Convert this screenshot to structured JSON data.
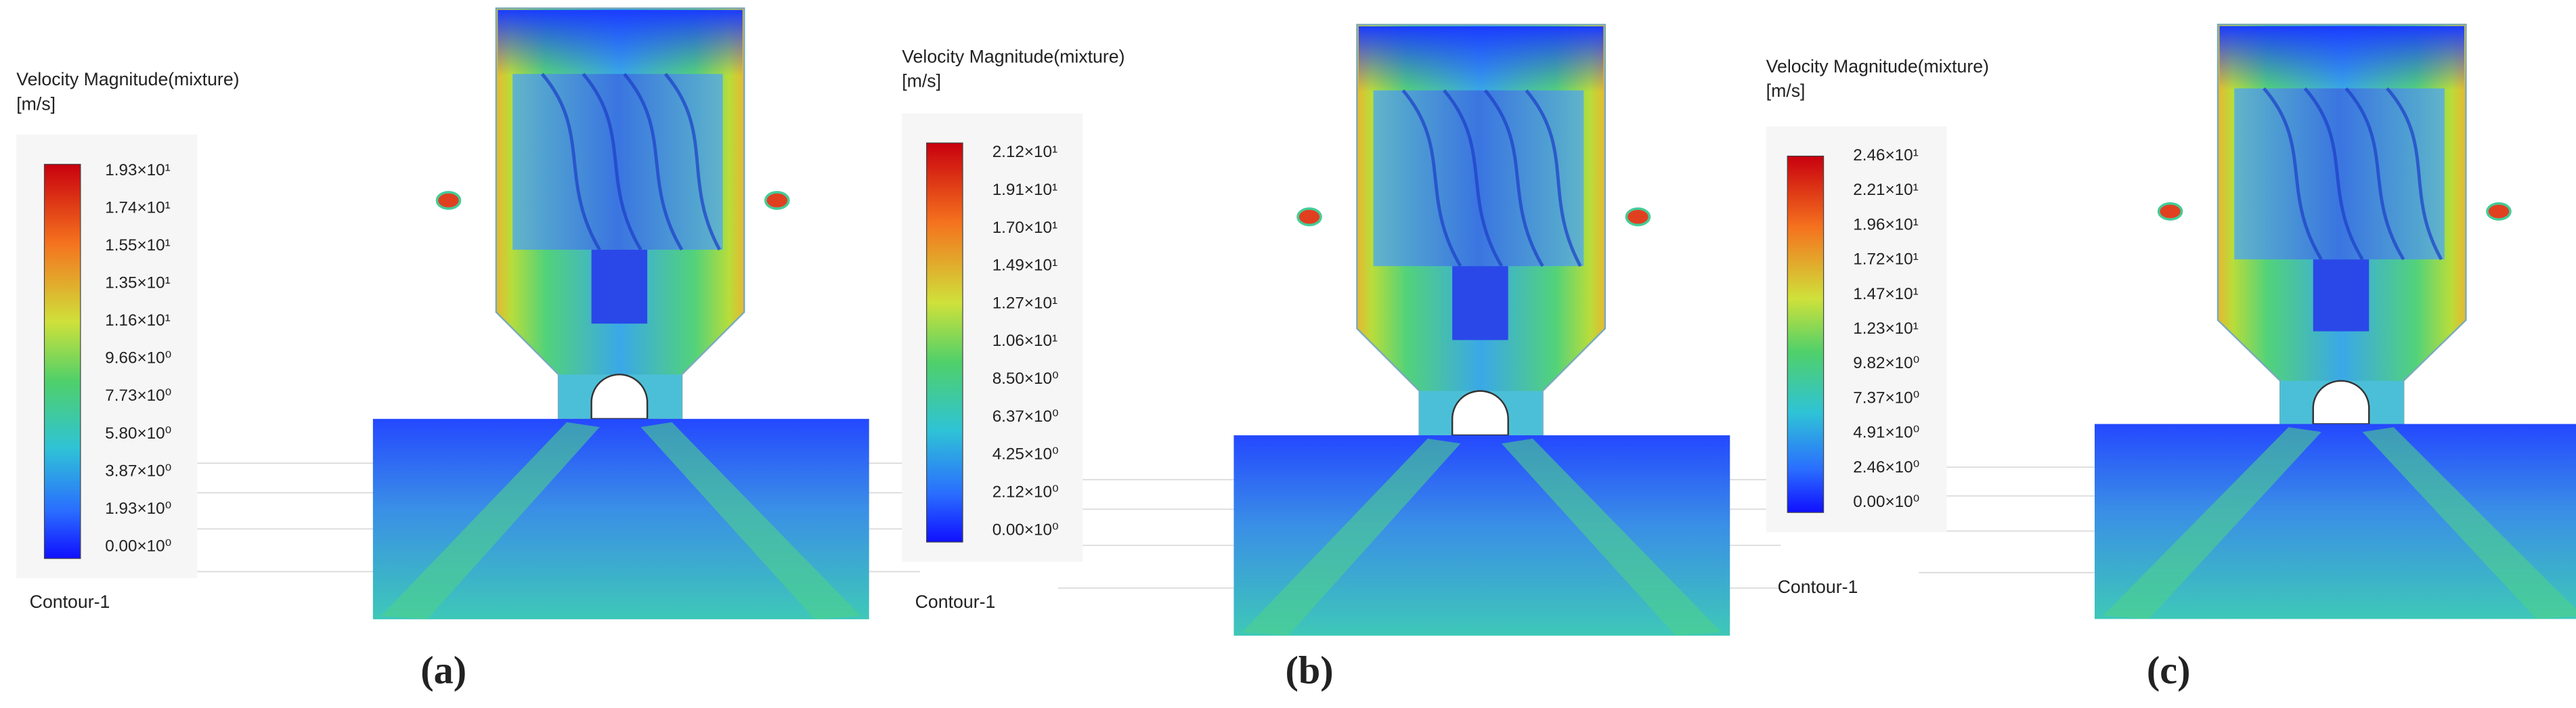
{
  "panels": [
    {
      "legend_title": "Velocity Magnitude(mixture)",
      "unit": "[m/s]",
      "ticks": [
        "1.93×10¹",
        "1.74×10¹",
        "1.55×10¹",
        "1.35×10¹",
        "1.16×10¹",
        "9.66×10⁰",
        "7.73×10⁰",
        "5.80×10⁰",
        "3.87×10⁰",
        "1.93×10⁰",
        "0.00×10⁰"
      ],
      "contour_label": "Contour-1",
      "caption": "(a)"
    },
    {
      "legend_title": "Velocity Magnitude(mixture)",
      "unit": "[m/s]",
      "ticks": [
        "2.12×10¹",
        "1.91×10¹",
        "1.70×10¹",
        "1.49×10¹",
        "1.27×10¹",
        "1.06×10¹",
        "8.50×10⁰",
        "6.37×10⁰",
        "4.25×10⁰",
        "2.12×10⁰",
        "0.00×10⁰"
      ],
      "contour_label": "Contour-1",
      "caption": "(b)"
    },
    {
      "legend_title": "Velocity Magnitude(mixture)",
      "unit": "[m/s]",
      "ticks": [
        "2.46×10¹",
        "2.21×10¹",
        "1.96×10¹",
        "1.72×10¹",
        "1.47×10¹",
        "1.23×10¹",
        "9.82×10⁰",
        "7.37×10⁰",
        "4.91×10⁰",
        "2.46×10⁰",
        "0.00×10⁰"
      ],
      "contour_label": "Contour-1",
      "caption": "(c)"
    }
  ]
}
